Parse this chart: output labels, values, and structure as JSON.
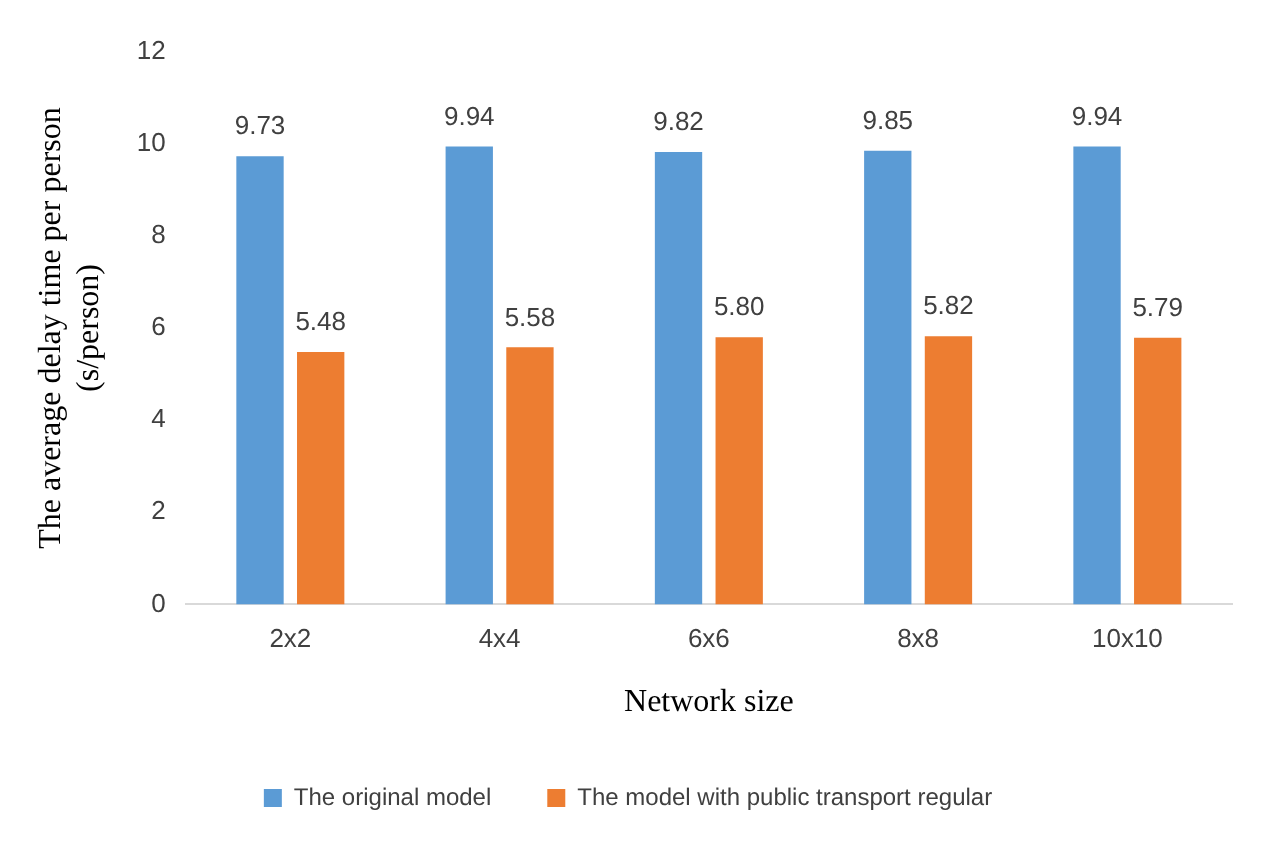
{
  "chart_data": {
    "type": "bar",
    "xlabel": "Network size",
    "ylabel": "The average delay time per person (s/person)",
    "categories": [
      "2x2",
      "4x4",
      "6x6",
      "8x8",
      "10x10"
    ],
    "series": [
      {
        "name": "The original model",
        "color": "#5b9bd5",
        "values": [
          9.73,
          9.94,
          9.82,
          9.85,
          9.94
        ],
        "value_labels": [
          "9.73",
          "9.94",
          "9.82",
          "9.85",
          "9.94"
        ]
      },
      {
        "name": "The model with public transport regular",
        "color": "#ed7d31",
        "values": [
          5.48,
          5.58,
          5.8,
          5.82,
          5.79
        ],
        "value_labels": [
          "5.48",
          "5.58",
          "5.80",
          "5.82",
          "5.79"
        ]
      }
    ],
    "ylim": [
      0,
      12
    ],
    "yticks": [
      0,
      2,
      4,
      6,
      8,
      10,
      12
    ],
    "grid": false,
    "legend": "bottom"
  }
}
